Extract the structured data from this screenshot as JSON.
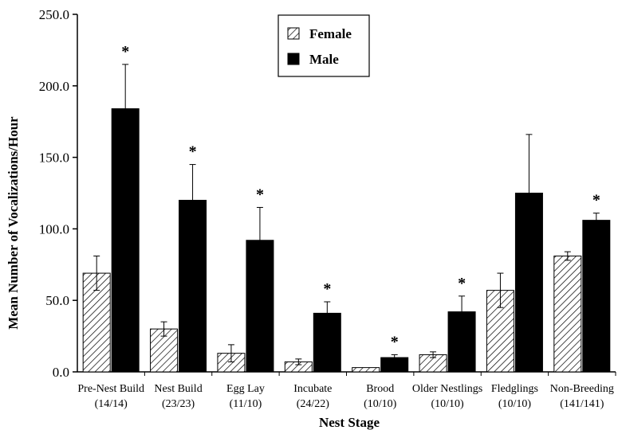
{
  "chart_data": {
    "type": "bar",
    "title": "",
    "xlabel": "Nest Stage",
    "ylabel": "Mean Number of Vocalizations/Hour",
    "ylim": [
      0,
      250
    ],
    "yticks": [
      "0.0",
      "50.0",
      "100.0",
      "150.0",
      "200.0",
      "250.0"
    ],
    "categories": [
      {
        "label": "Pre-Nest Build",
        "n": "(14/14)"
      },
      {
        "label": "Nest Build",
        "n": "(23/23)"
      },
      {
        "label": "Egg Lay",
        "n": "(11/10)"
      },
      {
        "label": "Incubate",
        "n": "(24/22)"
      },
      {
        "label": "Brood",
        "n": "(10/10)"
      },
      {
        "label": "Older Nestlings",
        "n": "(10/10)"
      },
      {
        "label": "Fledglings",
        "n": "(10/10)"
      },
      {
        "label": "Non-Breeding",
        "n": "(141/141)"
      }
    ],
    "series": [
      {
        "name": "Female",
        "pattern": "hatched",
        "values": [
          69,
          30,
          13,
          7,
          3,
          12,
          57,
          81
        ],
        "errors": [
          12,
          5,
          6,
          2,
          0,
          2,
          12,
          3
        ]
      },
      {
        "name": "Male",
        "pattern": "solid",
        "color": "#000000",
        "values": [
          184,
          120,
          92,
          41,
          10,
          42,
          125,
          106
        ],
        "errors": [
          31,
          25,
          23,
          8,
          2,
          11,
          41,
          5
        ]
      }
    ],
    "significance_marker": "*",
    "significant": [
      true,
      true,
      true,
      true,
      true,
      true,
      false,
      true
    ],
    "legend_position": "top-center",
    "grid": false
  }
}
